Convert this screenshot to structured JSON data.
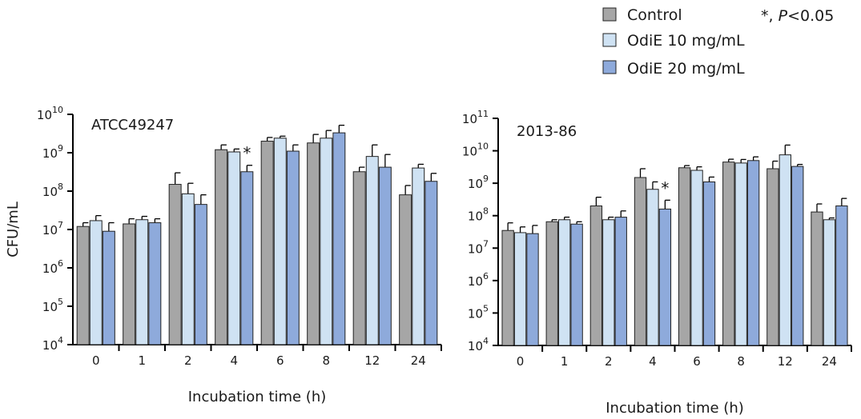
{
  "legend": {
    "items": [
      {
        "label": "Control",
        "color": "#a6a6a6"
      },
      {
        "label": "OdiE 10 mg/mL",
        "color": "#cfe2f3"
      },
      {
        "label": "OdiE 20 mg/mL",
        "color": "#8eaadb"
      }
    ],
    "significance_prefix": "*, ",
    "significance_p": "P",
    "significance_value": "<0.05"
  },
  "chart_data": [
    {
      "type": "bar",
      "title": "ATCC49247",
      "xlabel": "Incubation time (h)",
      "ylabel": "CFU/mL",
      "yscale": "log",
      "ylim": [
        10000,
        10000000000
      ],
      "ytick_base": "10",
      "ytick_exponents": [
        "4",
        "5",
        "6",
        "7",
        "8",
        "9",
        "10"
      ],
      "categories": [
        "0",
        "1",
        "2",
        "4",
        "6",
        "8",
        "12",
        "24"
      ],
      "series": [
        {
          "name": "Control",
          "values": [
            12000000,
            14000000,
            150000000,
            1200000000,
            2000000000,
            1800000000,
            320000000,
            80000000
          ],
          "errors": [
            15000000,
            19000000,
            300000000,
            1600000000,
            2500000000,
            3000000000,
            420000000,
            140000000
          ]
        },
        {
          "name": "OdiE 10 mg/mL",
          "values": [
            17000000,
            18000000,
            85000000,
            1050000000,
            2400000000,
            2400000000,
            800000000,
            400000000
          ],
          "errors": [
            23000000,
            22000000,
            160000000,
            1250000000,
            2700000000,
            3800000000,
            1600000000,
            500000000
          ]
        },
        {
          "name": "OdiE 20 mg/mL",
          "values": [
            9000000,
            15000000,
            45000000,
            320000000,
            1100000000,
            3300000000,
            420000000,
            180000000
          ],
          "errors": [
            15000000,
            19000000,
            80000000,
            470000000,
            1600000000,
            5200000000,
            900000000,
            290000000
          ]
        }
      ],
      "annotations": [
        {
          "text": "*",
          "category": "4"
        }
      ]
    },
    {
      "type": "bar",
      "title": "2013-86",
      "xlabel": "Incubation time (h)",
      "ylabel": "",
      "yscale": "log",
      "ylim": [
        10000,
        100000000000
      ],
      "ytick_base": "10",
      "ytick_exponents": [
        "4",
        "5",
        "6",
        "7",
        "8",
        "9",
        "10",
        "11"
      ],
      "categories": [
        "0",
        "1",
        "2",
        "4",
        "6",
        "8",
        "12",
        "24"
      ],
      "series": [
        {
          "name": "Control",
          "values": [
            35000000,
            65000000,
            200000000,
            1500000000,
            3000000000,
            4500000000,
            2800000000,
            130000000
          ],
          "errors": [
            60000000,
            75000000,
            370000000,
            2800000000,
            3500000000,
            5500000000,
            4800000000,
            230000000
          ]
        },
        {
          "name": "OdiE 10 mg/mL",
          "values": [
            30000000,
            75000000,
            75000000,
            650000000,
            2500000000,
            4200000000,
            7500000000,
            75000000
          ],
          "errors": [
            45000000,
            90000000,
            90000000,
            1100000000,
            3200000000,
            5400000000,
            15000000000,
            85000000
          ]
        },
        {
          "name": "OdiE 20 mg/mL",
          "values": [
            28000000,
            55000000,
            90000000,
            160000000,
            1100000000,
            5000000000,
            3300000000,
            200000000
          ],
          "errors": [
            50000000,
            65000000,
            140000000,
            300000000,
            1550000000,
            6500000000,
            3800000000,
            340000000
          ]
        }
      ],
      "annotations": [
        {
          "text": "*",
          "category": "4"
        }
      ]
    }
  ]
}
